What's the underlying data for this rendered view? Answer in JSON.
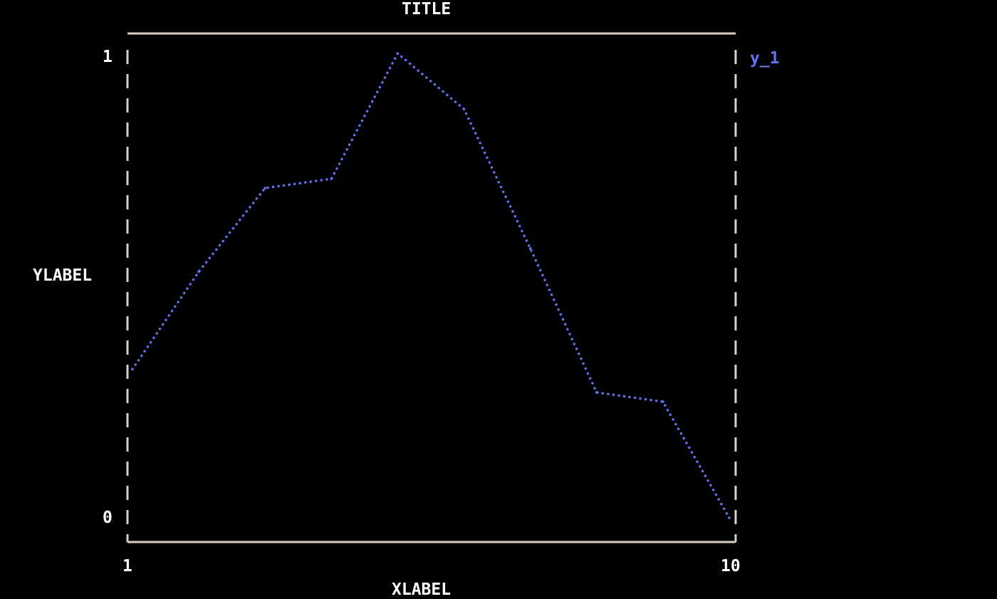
{
  "chart_data": {
    "type": "line",
    "title": "TITLE",
    "xlabel": "XLABEL",
    "ylabel": "YLABEL",
    "xlim": [
      1,
      10
    ],
    "ylim": [
      0,
      1
    ],
    "xticks": [
      "1",
      "10"
    ],
    "yticks": [
      "1",
      "0"
    ],
    "grid": false,
    "legend_placement": "right",
    "x": [
      1,
      2,
      3,
      4,
      5,
      6,
      7,
      8,
      9,
      10
    ],
    "series": [
      {
        "name": "y_1",
        "color": "#6272f2",
        "values": [
          0.32,
          0.53,
          0.71,
          0.73,
          1.0,
          0.88,
          0.58,
          0.27,
          0.25,
          0.0
        ]
      }
    ],
    "frame_color": "#d8d0c8"
  }
}
